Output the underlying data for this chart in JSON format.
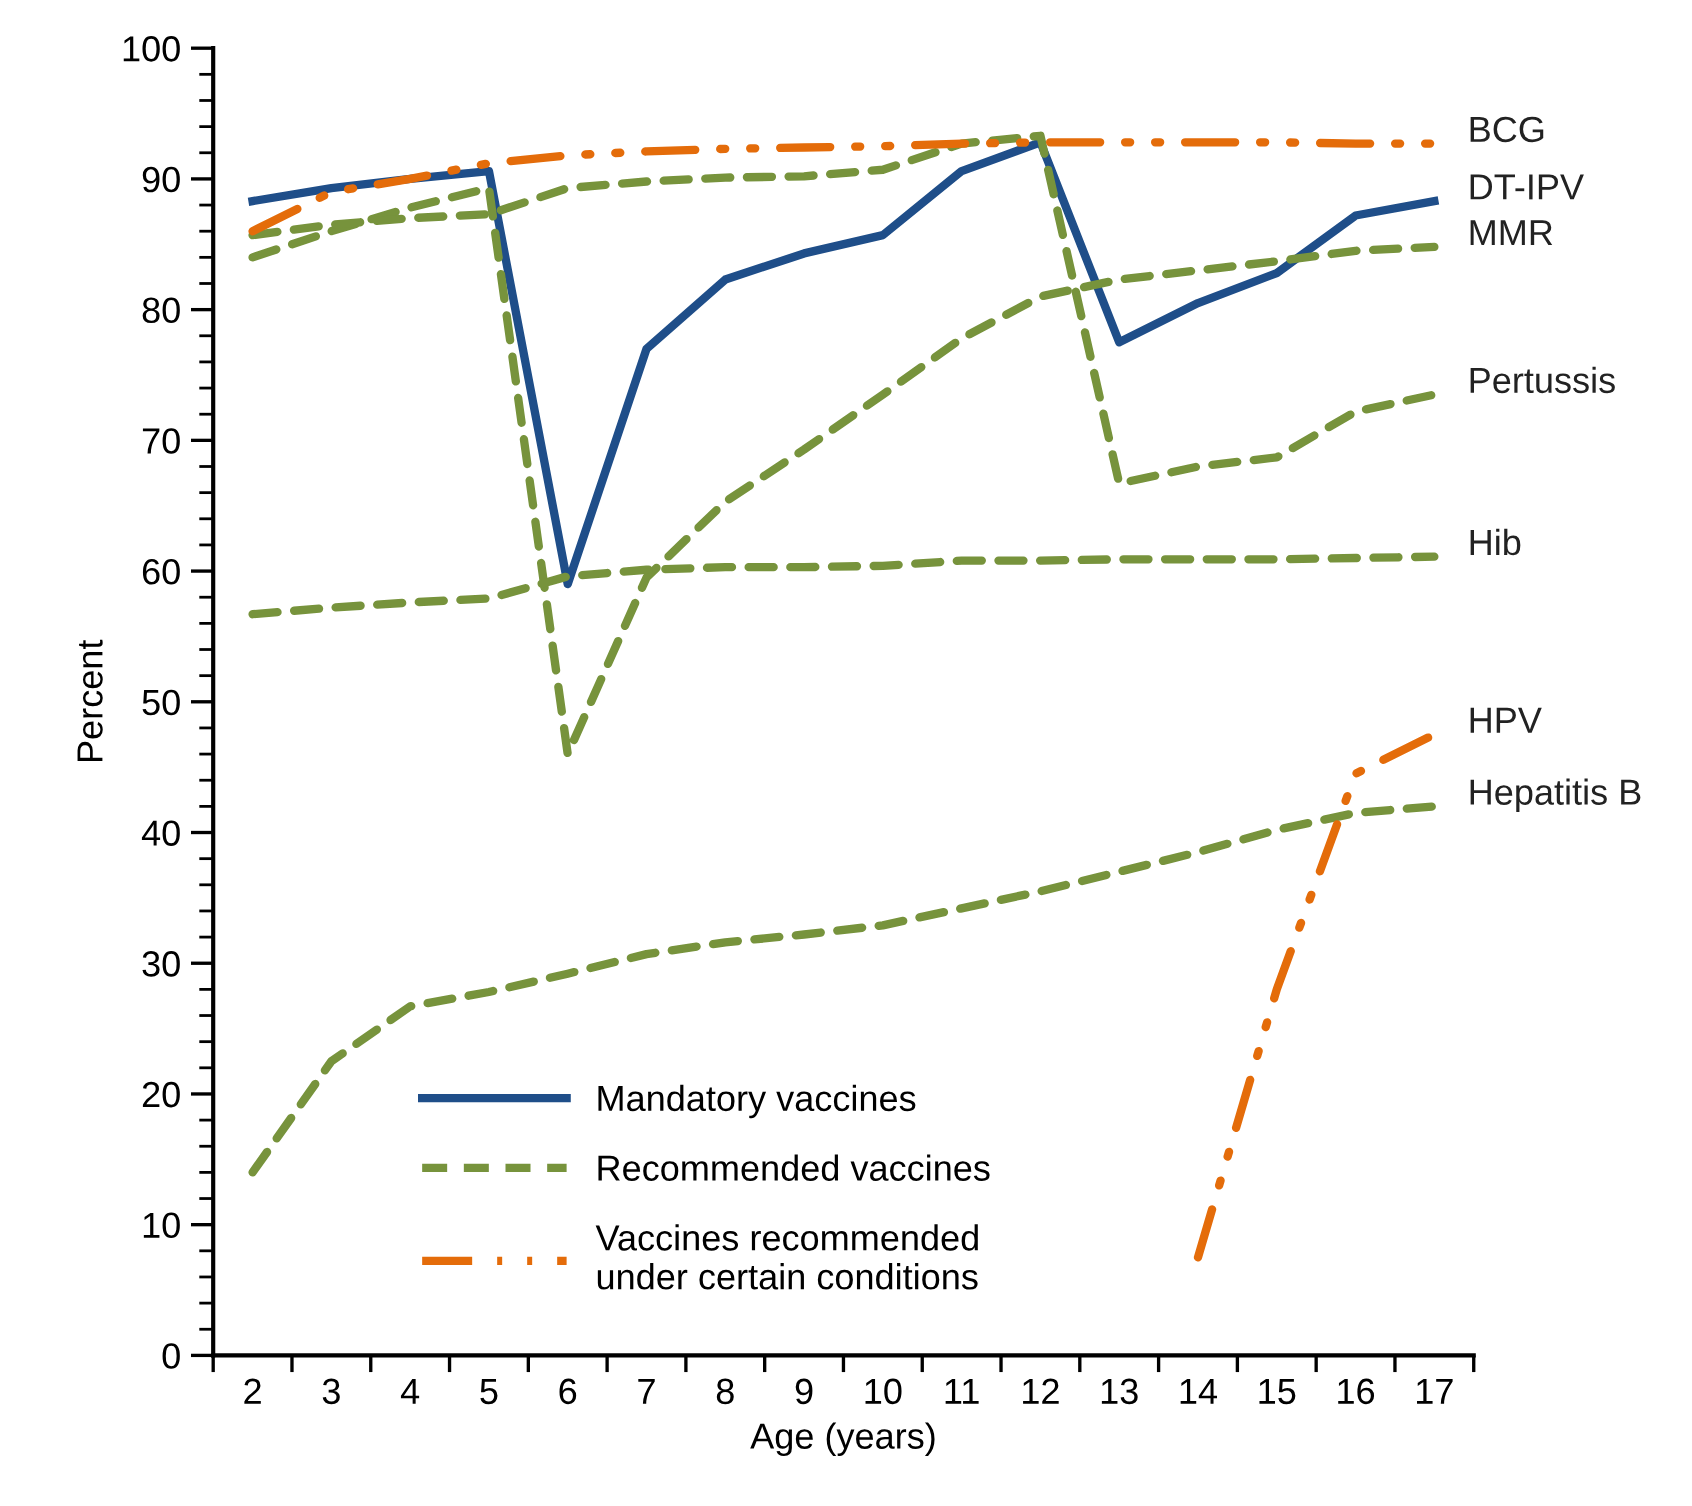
{
  "chart_data": {
    "type": "line",
    "xlabel": "Age (years)",
    "ylabel": "Percent",
    "categories": [
      "2",
      "3",
      "4",
      "5",
      "6",
      "7",
      "8",
      "9",
      "10",
      "11",
      "12",
      "13",
      "14",
      "15",
      "16",
      "17"
    ],
    "ylim": [
      0,
      100
    ],
    "yticks": [
      0,
      10,
      20,
      30,
      40,
      50,
      60,
      70,
      80,
      90,
      100
    ],
    "grid": false,
    "marker": "none",
    "series": [
      {
        "name": "DT-IPV",
        "color": "#1f4e89",
        "line_style": "solid",
        "values": [
          88.3,
          89.3,
          90,
          90.6,
          59,
          77,
          82.3,
          84.3,
          85.7,
          90.6,
          92.8,
          77.5,
          80.5,
          82.8,
          87.2,
          88.3
        ]
      },
      {
        "name": "MMR",
        "color": "#77933c",
        "line_style": "dashed",
        "values": [
          84,
          86,
          87.8,
          89.3,
          46,
          59.5,
          65.3,
          69.3,
          73.5,
          77.8,
          81,
          82.3,
          83,
          83.7,
          84.5,
          84.8
        ]
      },
      {
        "name": "Pertussis",
        "color": "#77933c",
        "line_style": "dashed",
        "values": [
          85.7,
          86.5,
          87,
          87.3,
          89.3,
          89.8,
          90.1,
          90.2,
          90.7,
          92.7,
          93.3,
          66.7,
          68,
          68.7,
          72.2,
          73.5
        ]
      },
      {
        "name": "Hib",
        "color": "#77933c",
        "line_style": "dashed",
        "values": [
          56.7,
          57.2,
          57.6,
          57.9,
          59.6,
          60.1,
          60.3,
          60.3,
          60.4,
          60.8,
          60.8,
          60.9,
          60.9,
          60.9,
          61,
          61.1
        ]
      },
      {
        "name": "Hepatitis B",
        "color": "#77933c",
        "line_style": "dashed",
        "values": [
          14,
          22.5,
          26.7,
          27.8,
          29.2,
          30.7,
          31.6,
          32.2,
          32.9,
          34.2,
          35.5,
          37,
          38.5,
          40.2,
          41.5,
          42
        ]
      },
      {
        "name": "BCG",
        "color": "#e46c0a",
        "line_style": "dashdot",
        "values": [
          86,
          89,
          90,
          91.2,
          91.8,
          92.1,
          92.3,
          92.4,
          92.5,
          92.7,
          92.8,
          92.8,
          92.8,
          92.8,
          92.7,
          92.7
        ]
      },
      {
        "name": "HPV",
        "color": "#e46c0a",
        "line_style": "dashdot",
        "values": [
          null,
          null,
          null,
          null,
          null,
          null,
          null,
          null,
          null,
          null,
          null,
          null,
          7.5,
          28,
          44.5,
          47.5
        ]
      }
    ],
    "annotations": [
      "Mandatory vaccines",
      "Recommended vaccines",
      "Vaccines recommended\nunder certain conditions"
    ]
  }
}
